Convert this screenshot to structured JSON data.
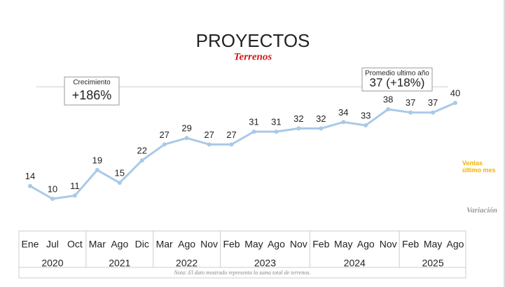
{
  "chart_data": {
    "type": "line",
    "title": "PROYECTOS",
    "subtitle": "Terrenos",
    "groups": [
      {
        "label": "2020",
        "categories": [
          "Ene",
          "Jul",
          "Oct"
        ]
      },
      {
        "label": "2021",
        "categories": [
          "Mar",
          "Ago",
          "Dic"
        ]
      },
      {
        "label": "2022",
        "categories": [
          "Mar",
          "Ago",
          "Nov"
        ]
      },
      {
        "label": "2023",
        "categories": [
          "Feb",
          "May",
          "Ago",
          "Nov"
        ]
      },
      {
        "label": "2024",
        "categories": [
          "Feb",
          "May",
          "Ago",
          "Nov"
        ]
      },
      {
        "label": "2025",
        "categories": [
          "Feb",
          "May",
          "Ago"
        ]
      }
    ],
    "values": [
      14,
      10,
      11,
      19,
      15,
      22,
      27,
      29,
      27,
      27,
      31,
      31,
      32,
      32,
      34,
      33,
      38,
      37,
      37,
      40
    ],
    "color": "#a9c9e9",
    "annotations": [
      {
        "label": "Crecimiento",
        "text": "+186%"
      },
      {
        "label": "Promedio ultimo año",
        "text": "37 (+18%)"
      }
    ],
    "side_label": "Ventas último mes",
    "footer_label": "Variación",
    "note": "Nota: El dato mostrado representa la suma total de terrenos."
  }
}
